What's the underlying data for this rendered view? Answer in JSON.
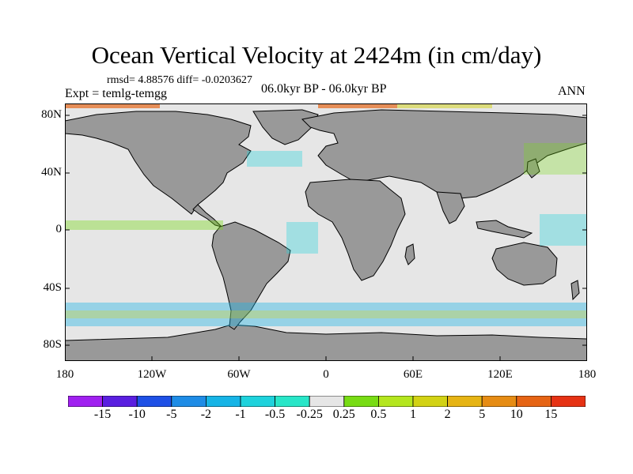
{
  "title": "Ocean Vertical Velocity at 2424m (in cm/day)",
  "stats": "rmsd= 4.88576 diff= -0.0203627",
  "experiment": "Expt = temlg-temgg",
  "period": "06.0kyr BP - 06.0kyr BP",
  "season": "ANN",
  "lat_labels": [
    "80N",
    "40N",
    "0",
    "40S",
    "80S"
  ],
  "lon_labels": [
    "180",
    "120W",
    "60W",
    "0",
    "60E",
    "120E",
    "180"
  ],
  "colorbar": {
    "labels": [
      "-15",
      "-10",
      "-5",
      "-2",
      "-1",
      "-0.5",
      "-0.25",
      "0.25",
      "0.5",
      "1",
      "2",
      "5",
      "10",
      "15"
    ],
    "colors": [
      "#a020f0",
      "#5a1fe0",
      "#1e50e6",
      "#1e8ce6",
      "#16b4e6",
      "#1ed2dc",
      "#28e6c8",
      "#e6e6e6",
      "#78dc14",
      "#b4e61e",
      "#d2d214",
      "#e6b414",
      "#e68c14",
      "#e66414",
      "#e63214"
    ]
  },
  "map_colors": {
    "land": "#999999",
    "ocean_neutral": "#e6e6e6"
  }
}
